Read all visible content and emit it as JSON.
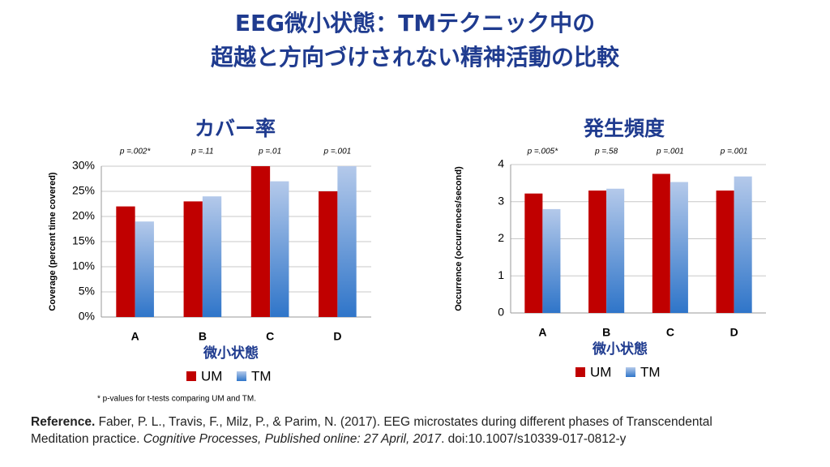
{
  "title": [
    "EEG微小状態：TMテクニック中の",
    "超越と方向づけされない精神活動の比較"
  ],
  "chart_data": [
    {
      "type": "bar",
      "title": "カバー率",
      "x_label": "微小状態",
      "y_label": "Coverage (percent time covered)",
      "categories": [
        "A",
        "B",
        "C",
        "D"
      ],
      "annotations": [
        "p =.002*",
        "p =.11",
        "p =.01",
        "p =.001"
      ],
      "series": [
        {
          "name": "UM",
          "color": "#c00000",
          "values": [
            22,
            23,
            30,
            25
          ]
        },
        {
          "name": "TM",
          "color": "#b4c9ea",
          "values": [
            19,
            24,
            27,
            30
          ]
        }
      ],
      "ylim": [
        0,
        30
      ],
      "yticks": [
        {
          "value": 0,
          "label": "0%"
        },
        {
          "value": 5,
          "label": "5%"
        },
        {
          "value": 10,
          "label": "10%"
        },
        {
          "value": 15,
          "label": "15%"
        },
        {
          "value": 20,
          "label": "20%"
        },
        {
          "value": 25,
          "label": "25%"
        },
        {
          "value": 30,
          "label": "30%"
        }
      ],
      "grid": true
    },
    {
      "type": "bar",
      "title": "発生頻度",
      "x_label": "微小状態",
      "y_label": "Occurrence (occurrences/second)",
      "categories": [
        "A",
        "B",
        "C",
        "D"
      ],
      "annotations": [
        "p =.005*",
        "p =.58",
        "p =.001",
        "p =.001"
      ],
      "series": [
        {
          "name": "UM",
          "color": "#c00000",
          "values": [
            3.22,
            3.3,
            3.75,
            3.3
          ]
        },
        {
          "name": "TM",
          "color": "#b4c9ea",
          "values": [
            2.8,
            3.35,
            3.53,
            3.68
          ]
        }
      ],
      "ylim": [
        0,
        4
      ],
      "yticks": [
        0,
        1,
        2,
        3,
        4
      ],
      "grid": true
    }
  ],
  "footnote": "* p-values for t-tests comparing UM and TM.",
  "reference": {
    "label": "Reference.",
    "text": "Faber, P. L., Travis, F., Milz, P., & Parim, N. (2017). EEG microstates during different phases of Transcendental Meditation practice.",
    "journal": "Cognitive Processes, Published online: 27 April, 2017",
    "doi": ". doi:10.1007/s10339-017-0812-y"
  }
}
